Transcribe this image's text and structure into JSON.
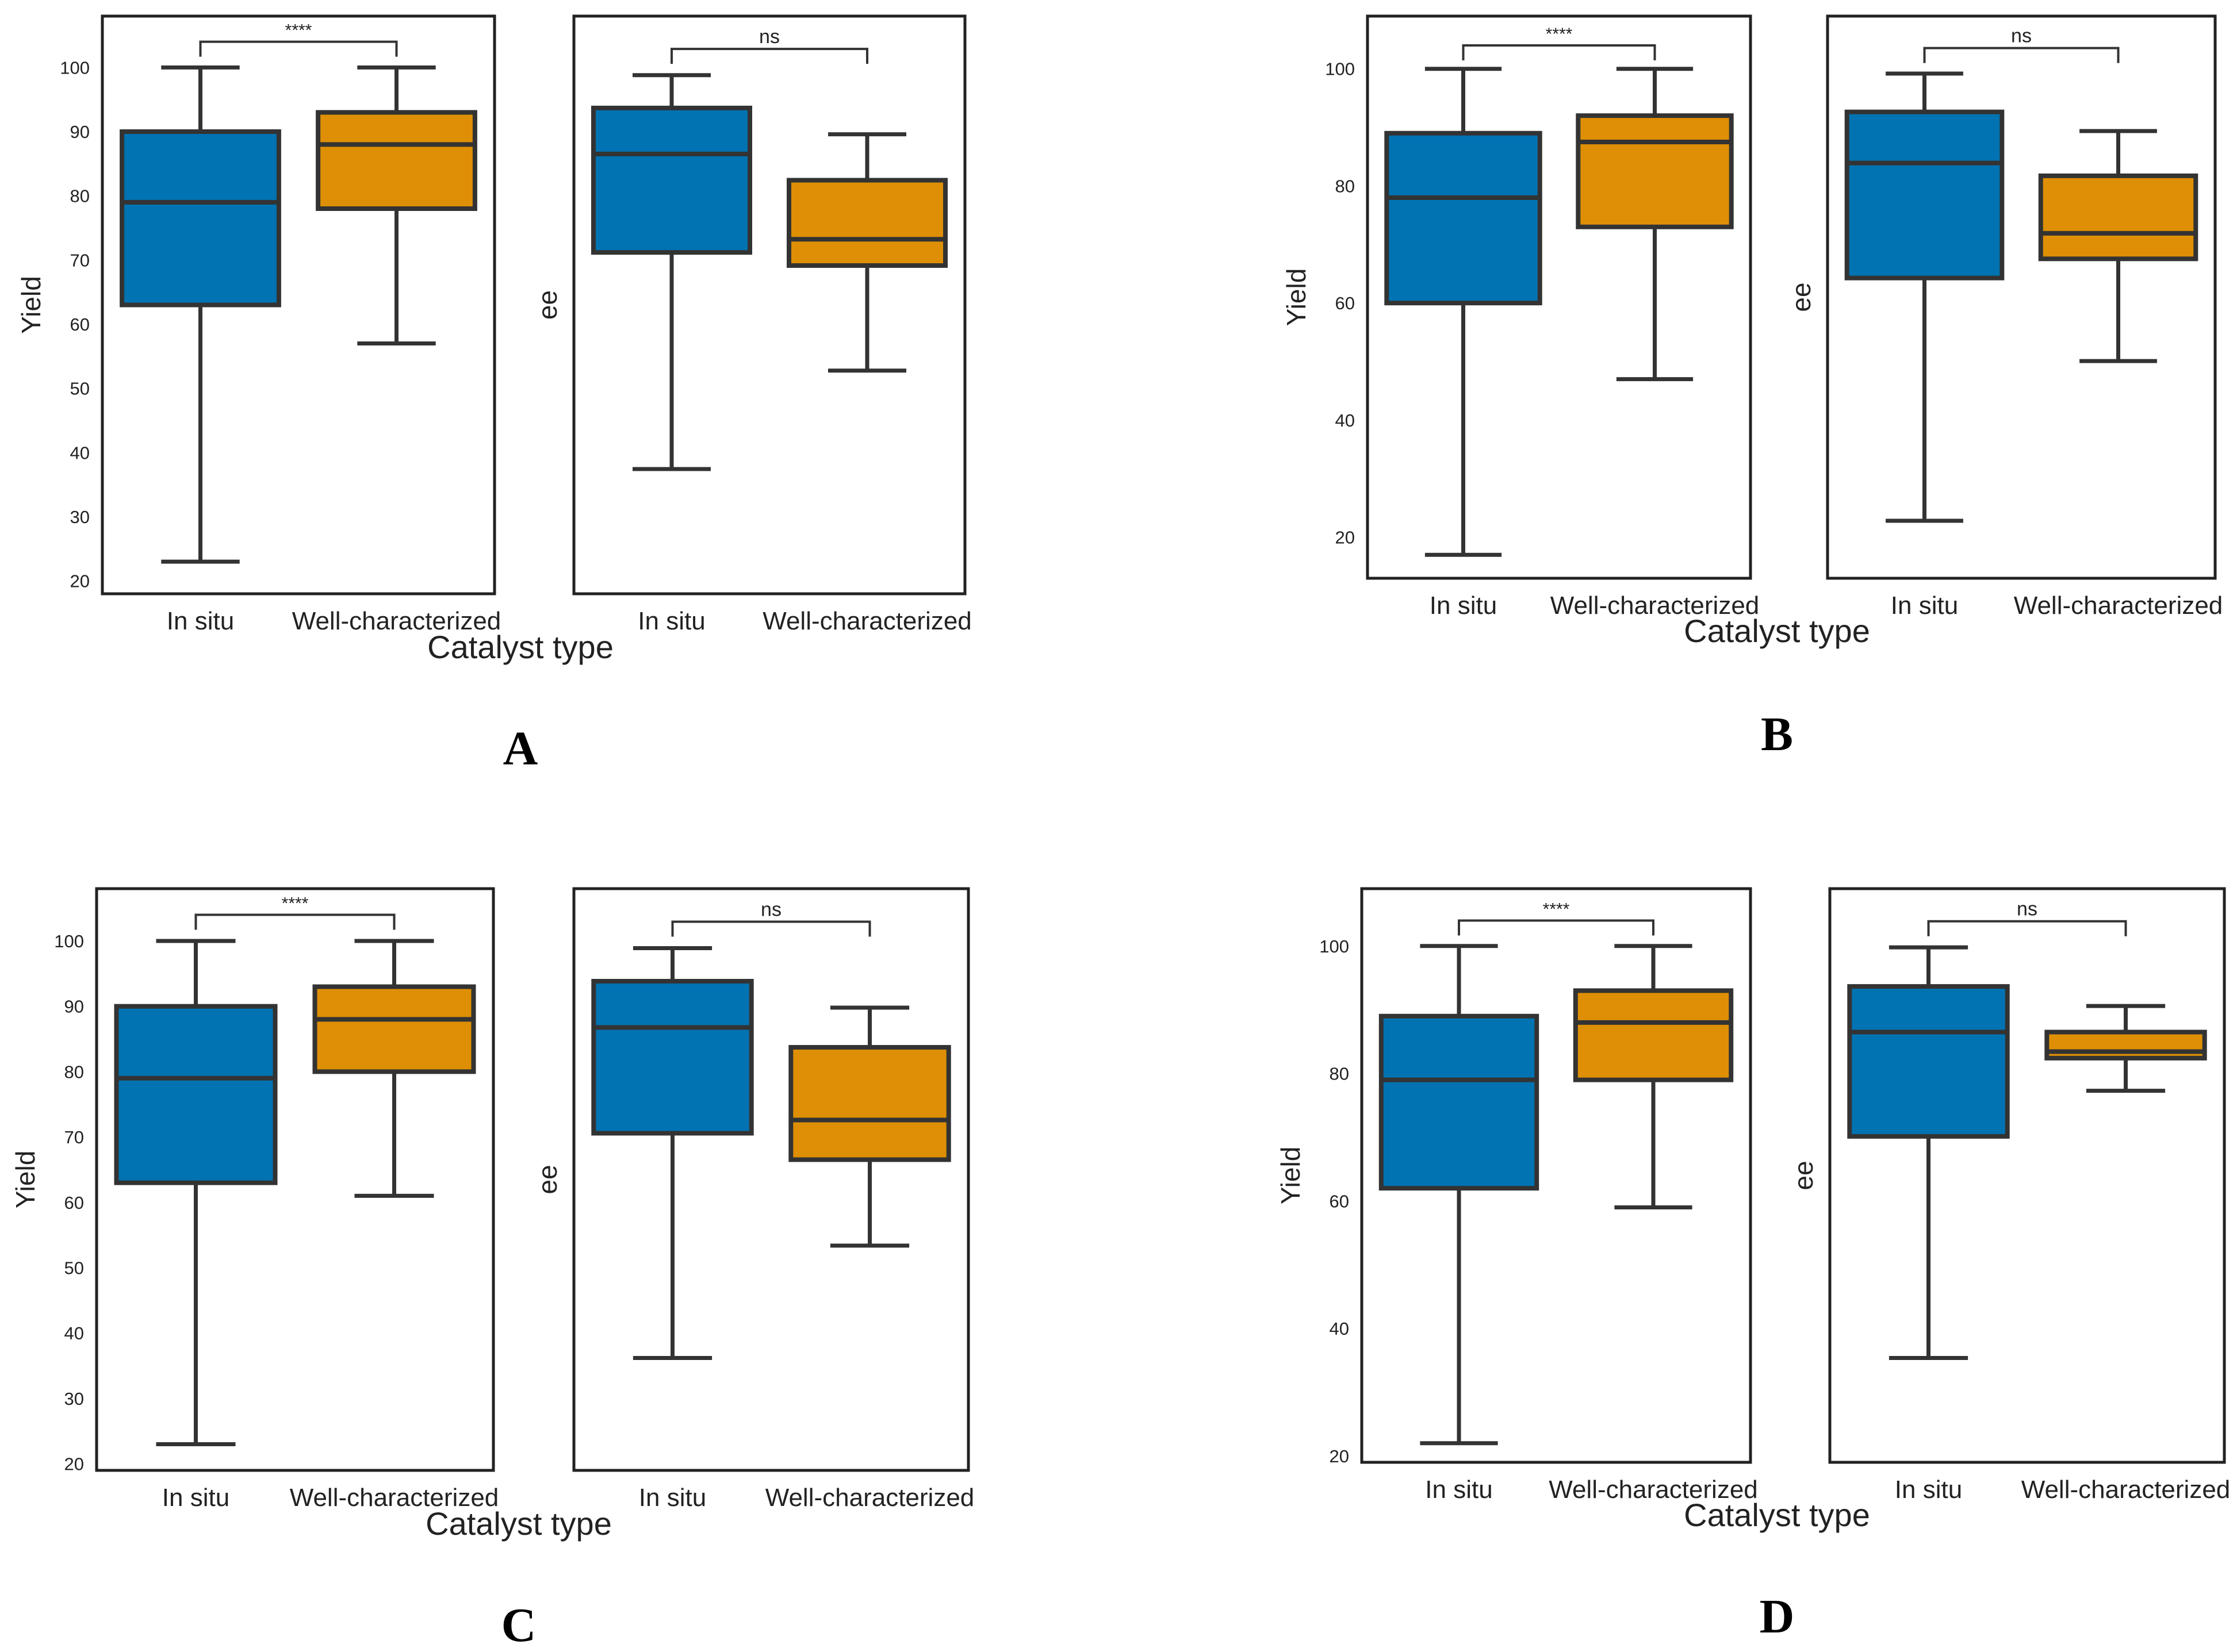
{
  "colors": {
    "in_situ": "#0173B2",
    "well_characterized": "#DE8F05",
    "edge": "#333333",
    "frame": "#222222"
  },
  "figure": {
    "panel_labels": [
      "A",
      "B",
      "C",
      "D"
    ]
  },
  "chart_data": [
    {
      "panel": "A",
      "xlabel": "Catalyst type",
      "subplots": [
        {
          "type": "box",
          "ylabel": "Yield",
          "ylim": [
            18,
            108
          ],
          "yticks": [
            20,
            30,
            40,
            50,
            60,
            70,
            80,
            90,
            100
          ],
          "show_ticks": true,
          "categories": [
            "In situ",
            "Well-characterized"
          ],
          "boxes": [
            {
              "whislo": 23,
              "q1": 63,
              "med": 79,
              "q3": 90,
              "whishi": 100
            },
            {
              "whislo": 57,
              "q1": 78,
              "med": 88,
              "q3": 93,
              "whishi": 100
            }
          ],
          "significance": "****",
          "bracket_y": 104
        },
        {
          "type": "box",
          "ylabel": "ee",
          "ylim": [
            20,
            108
          ],
          "show_ticks": false,
          "categories": [
            "In situ",
            "Well-characterized"
          ],
          "boxes": [
            {
              "whislo": 39,
              "q1": 72,
              "med": 87,
              "q3": 94,
              "whishi": 99
            },
            {
              "whislo": 54,
              "q1": 70,
              "med": 74,
              "q3": 83,
              "whishi": 90
            }
          ],
          "significance": "ns",
          "bracket_y": 103
        }
      ]
    },
    {
      "panel": "B",
      "xlabel": "Catalyst type",
      "subplots": [
        {
          "type": "box",
          "ylabel": "Yield",
          "ylim": [
            13,
            109
          ],
          "yticks": [
            20,
            40,
            60,
            80,
            100
          ],
          "show_ticks": true,
          "categories": [
            "In situ",
            "Well-characterized"
          ],
          "boxes": [
            {
              "whislo": 17,
              "q1": 60,
              "med": 78,
              "q3": 89,
              "whishi": 100
            },
            {
              "whislo": 47,
              "q1": 73,
              "med": 87.5,
              "q3": 92,
              "whishi": 100
            }
          ],
          "significance": "****",
          "bracket_y": 104
        },
        {
          "type": "box",
          "ylabel": "ee",
          "ylim": [
            20,
            108
          ],
          "show_ticks": false,
          "categories": [
            "In situ",
            "Well-characterized"
          ],
          "boxes": [
            {
              "whislo": 29,
              "q1": 67,
              "med": 85,
              "q3": 93,
              "whishi": 99
            },
            {
              "whislo": 54,
              "q1": 70,
              "med": 74,
              "q3": 83,
              "whishi": 90
            }
          ],
          "significance": "ns",
          "bracket_y": 103
        }
      ]
    },
    {
      "panel": "C",
      "xlabel": "Catalyst type",
      "subplots": [
        {
          "type": "box",
          "ylabel": "Yield",
          "ylim": [
            19,
            108
          ],
          "yticks": [
            20,
            30,
            40,
            50,
            60,
            70,
            80,
            90,
            100
          ],
          "show_ticks": true,
          "categories": [
            "In situ",
            "Well-characterized"
          ],
          "boxes": [
            {
              "whislo": 23,
              "q1": 63,
              "med": 79,
              "q3": 90,
              "whishi": 100
            },
            {
              "whislo": 61,
              "q1": 80,
              "med": 88,
              "q3": 93,
              "whishi": 100
            }
          ],
          "significance": "****",
          "bracket_y": 104
        },
        {
          "type": "box",
          "ylabel": "ee",
          "ylim": [
            20,
            108
          ],
          "show_ticks": false,
          "categories": [
            "In situ",
            "Well-characterized"
          ],
          "boxes": [
            {
              "whislo": 37,
              "q1": 71,
              "med": 87,
              "q3": 94,
              "whishi": 99
            },
            {
              "whislo": 54,
              "q1": 67,
              "med": 73,
              "q3": 84,
              "whishi": 90
            }
          ],
          "significance": "ns",
          "bracket_y": 103
        }
      ]
    },
    {
      "panel": "D",
      "xlabel": "Catalyst type",
      "subplots": [
        {
          "type": "box",
          "ylabel": "Yield",
          "ylim": [
            19,
            109
          ],
          "yticks": [
            20,
            40,
            60,
            80,
            100
          ],
          "show_ticks": true,
          "categories": [
            "In situ",
            "Well-characterized"
          ],
          "boxes": [
            {
              "whislo": 22,
              "q1": 62,
              "med": 79,
              "q3": 89,
              "whishi": 100
            },
            {
              "whislo": 59,
              "q1": 79,
              "med": 88,
              "q3": 93,
              "whishi": 100
            }
          ],
          "significance": "****",
          "bracket_y": 104
        },
        {
          "type": "box",
          "ylabel": "ee",
          "ylim": [
            20,
            108
          ],
          "show_ticks": false,
          "categories": [
            "In situ",
            "Well-characterized"
          ],
          "boxes": [
            {
              "whislo": 36,
              "q1": 70,
              "med": 86,
              "q3": 93,
              "whishi": 99
            },
            {
              "whislo": 77,
              "q1": 82,
              "med": 83,
              "q3": 86,
              "whishi": 90
            }
          ],
          "significance": "ns",
          "bracket_y": 103
        }
      ]
    }
  ]
}
